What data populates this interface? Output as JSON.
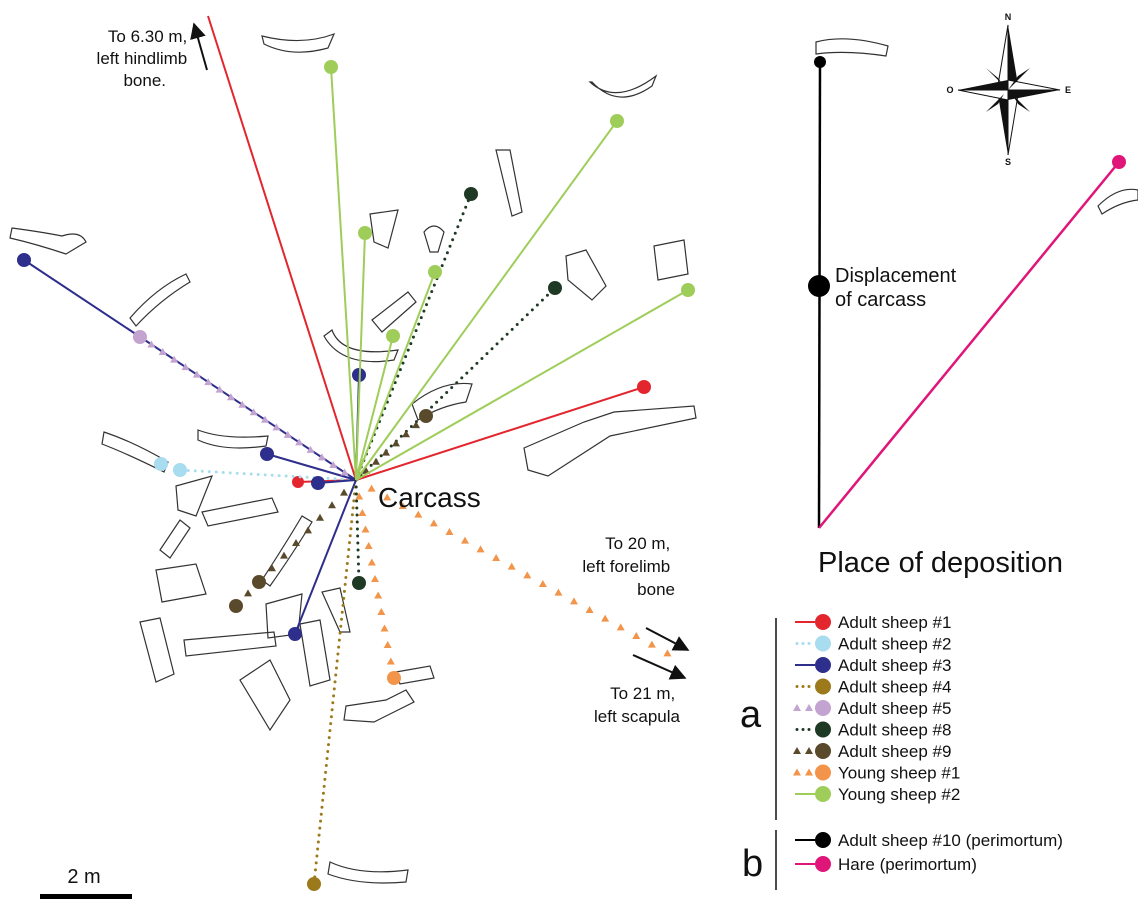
{
  "center_label": "Carcass",
  "annotations": {
    "hindlimb": [
      "To 6.30 m,",
      "left hindlimb",
      "bone."
    ],
    "forelimb": [
      "To 20 m,",
      "left forelimb",
      "bone"
    ],
    "scapula": [
      "To 21 m,",
      "left scapula"
    ]
  },
  "scale_bar": {
    "label": "2 m"
  },
  "panel_b": {
    "displacement": [
      "Displacement",
      "of carcass"
    ],
    "deposition": "Place of deposition",
    "compass": {
      "n": "N",
      "s": "S",
      "e": "E",
      "w": "O"
    }
  },
  "legend": {
    "group_a": "a",
    "group_b": "b",
    "entries": [
      {
        "group": "a",
        "label": "Adult sheep #1",
        "color": "#e3262e",
        "line": "solid"
      },
      {
        "group": "a",
        "label": "Adult sheep #2",
        "color": "#a8dcef",
        "line": "dotted"
      },
      {
        "group": "a",
        "label": "Adult sheep #3",
        "color": "#2e2e8c",
        "line": "solid"
      },
      {
        "group": "a",
        "label": "Adult sheep #4",
        "color": "#9c7a1c",
        "line": "dotted"
      },
      {
        "group": "a",
        "label": "Adult sheep #5",
        "color": "#c3a3d0",
        "line": "triangles"
      },
      {
        "group": "a",
        "label": "Adult sheep #8",
        "color": "#1f3a24",
        "line": "dotted"
      },
      {
        "group": "a",
        "label": "Adult sheep #9",
        "color": "#5a4a2c",
        "line": "triangles"
      },
      {
        "group": "a",
        "label": "Young sheep #1",
        "color": "#f2954a",
        "line": "triangles"
      },
      {
        "group": "a",
        "label": "Young sheep #2",
        "color": "#9fcd5a",
        "line": "solid"
      },
      {
        "group": "b",
        "label": "Adult sheep #10 (perimortum)",
        "color": "#000000",
        "line": "solid"
      },
      {
        "group": "b",
        "label": "Hare (perimortum)",
        "color": "#e0157a",
        "line": "solid"
      }
    ]
  }
}
